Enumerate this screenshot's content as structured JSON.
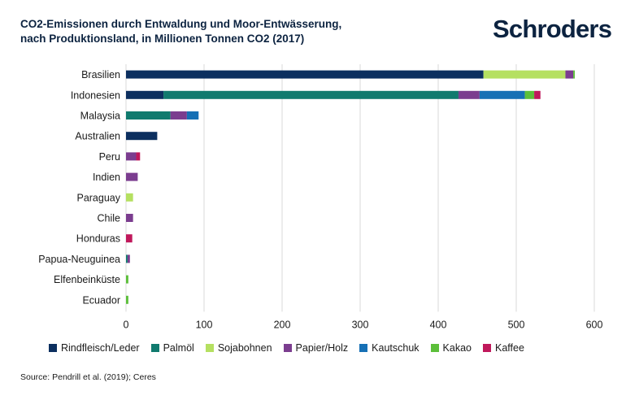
{
  "header": {
    "title_line1": "CO2-Emissionen durch Entwaldung und Moor-Entwässerung,",
    "title_line2": "nach Produktionsland, in Millionen Tonnen CO2 (2017)",
    "logo": "Schroders"
  },
  "footer": {
    "source": "Source: Pendrill et al. (2019); Ceres"
  },
  "colors": {
    "Rindfleisch/Leder": "#0c2f5f",
    "Palmöl": "#107a6e",
    "Sojabohnen": "#b5e061",
    "Papier/Holz": "#7b3d8f",
    "Kautschuk": "#1670b5",
    "Kakao": "#5cbf3a",
    "Kaffee": "#c0185b"
  },
  "chart_data": {
    "type": "bar",
    "orientation": "horizontal",
    "stacked": true,
    "title": "CO2-Emissionen durch Entwaldung und Moor-Entwässerung, nach Produktionsland, in Millionen Tonnen CO2 (2017)",
    "categories": [
      "Brasilien",
      "Indonesien",
      "Malaysia",
      "Australien",
      "Peru",
      "Indien",
      "Paraguay",
      "Chile",
      "Honduras",
      "Papua-Neuguinea",
      "Elfenbeinküste",
      "Ecuador"
    ],
    "series": [
      {
        "name": "Rindfleisch/Leder",
        "values": [
          458,
          48,
          0,
          40,
          0,
          0,
          0,
          0,
          0,
          0,
          0,
          0
        ]
      },
      {
        "name": "Palmöl",
        "values": [
          0,
          378,
          57,
          0,
          0,
          0,
          0,
          0,
          0,
          2,
          0,
          0
        ]
      },
      {
        "name": "Sojabohnen",
        "values": [
          105,
          0,
          0,
          0,
          0,
          0,
          9,
          0,
          0,
          0,
          0,
          0
        ]
      },
      {
        "name": "Papier/Holz",
        "values": [
          10,
          27,
          21,
          0,
          13,
          15,
          0,
          9,
          0,
          3,
          0,
          0
        ]
      },
      {
        "name": "Kautschuk",
        "values": [
          0,
          58,
          15,
          0,
          0,
          0,
          0,
          0,
          0,
          0,
          0,
          0
        ]
      },
      {
        "name": "Kakao",
        "values": [
          2,
          12,
          0,
          0,
          0,
          0,
          0,
          0,
          0,
          0,
          3,
          3
        ]
      },
      {
        "name": "Kaffee",
        "values": [
          0,
          8,
          0,
          0,
          5,
          0,
          0,
          0,
          8,
          0,
          0,
          0
        ]
      }
    ],
    "xlim": [
      0,
      600
    ],
    "xticks": [
      0,
      100,
      200,
      300,
      400,
      500,
      600
    ],
    "grid": "vertical",
    "legend": "bottom"
  }
}
